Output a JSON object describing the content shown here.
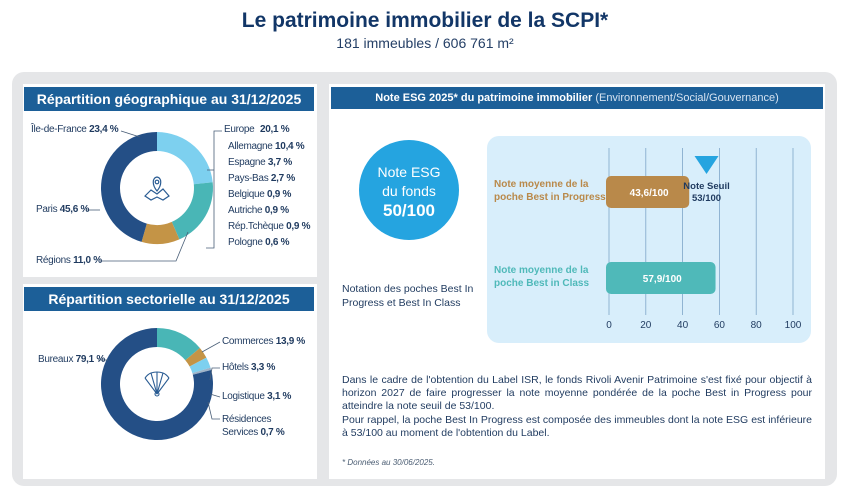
{
  "header": {
    "title": "Le patrimoine immobilier de la SCPI*",
    "subtitle": "181 immeubles / 606 761 m²"
  },
  "geo": {
    "heading": "Répartition géographique au 31/12/2025",
    "icon": "map-pin-icon"
  },
  "sector": {
    "heading": "Répartition sectorielle au 31/12/2025",
    "icon": "fan-icon"
  },
  "esg": {
    "heading_main": "Note ESG 2025* du patrimoine immobilier",
    "heading_sub": "(Environnement/Social/Gouvernance)",
    "bubble_line1": "Note ESG",
    "bubble_line2": "du fonds",
    "bubble_value": "50/100",
    "notation": "Notation des poches Best In Progress et Best In Class",
    "paragraph1": "Dans le cadre de l'obtention du Label ISR, le fonds Rivoli Avenir Patrimoine s'est fixé pour objectif à horizon 2027 de faire progresser la note moyenne pondérée de la poche Best in Progress pour atteindre la note seuil de 53/100.",
    "paragraph2": "Pour rappel, la poche Best In Progress est composée des immeubles dont la note ESG est inférieure à 53/100 au moment de l'obtention du Label.",
    "footnote": "* Données au 30/06/2025."
  },
  "colors": {
    "navy": "#1c5f98",
    "dark_segment": "#244f86",
    "light_blue": "#7dd0ef",
    "teal": "#49b6b6",
    "gold": "#c49446",
    "bubble": "#25a4e0",
    "chart_bg": "#d8eefb"
  },
  "chart_data": [
    {
      "type": "pie",
      "title": "Répartition géographique au 31/12/2025",
      "slices": [
        {
          "name": "Île-de-France",
          "label": "23,4 %",
          "value": 23.4,
          "color": "#7dd0ef"
        },
        {
          "name": "Europe",
          "label": "20,1 %",
          "value": 20.1,
          "color": "#49b6b6",
          "breakdown": [
            {
              "name": "Allemagne",
              "label": "10,4 %",
              "value": 10.4
            },
            {
              "name": "Espagne",
              "label": "3,7 %",
              "value": 3.7
            },
            {
              "name": "Pays-Bas",
              "label": "2,7 %",
              "value": 2.7
            },
            {
              "name": "Belgique",
              "label": "0,9 %",
              "value": 0.9
            },
            {
              "name": "Autriche",
              "label": "0,9 %",
              "value": 0.9
            },
            {
              "name": "Rép.Tchèque",
              "label": "0,9 %",
              "value": 0.9
            },
            {
              "name": "Pologne",
              "label": "0,6 %",
              "value": 0.6
            }
          ]
        },
        {
          "name": "Régions",
          "label": "11,0 %",
          "value": 11.0,
          "color": "#c49446"
        },
        {
          "name": "Paris",
          "label": "45,6 %",
          "value": 45.6,
          "color": "#244f86"
        }
      ]
    },
    {
      "type": "pie",
      "title": "Répartition sectorielle au 31/12/2025",
      "slices": [
        {
          "name": "Commerces",
          "label": "13,9 %",
          "value": 13.9,
          "color": "#49b6b6"
        },
        {
          "name": "Hôtels",
          "label": "3,3 %",
          "value": 3.3,
          "color": "#c49446"
        },
        {
          "name": "Logistique",
          "label": "3,1 %",
          "value": 3.1,
          "color": "#7dd0ef"
        },
        {
          "name": "Résidences Services",
          "label": "0,7 %",
          "value": 0.7,
          "color": "#9fb3c8"
        },
        {
          "name": "Bureaux",
          "label": "79,1 %",
          "value": 79.1,
          "color": "#244f86"
        }
      ]
    },
    {
      "type": "bar",
      "orientation": "horizontal",
      "categories": [
        "Note moyenne de la poche Best in Progress",
        "Note moyenne de la poche Best in Class"
      ],
      "values": [
        43.6,
        57.9
      ],
      "value_labels": [
        "43,6/100",
        "57,9/100"
      ],
      "colors": [
        "#b9894a",
        "#4fb9b9"
      ],
      "xlim": [
        0,
        100
      ],
      "xticks": [
        0,
        20,
        40,
        60,
        80,
        100
      ],
      "grid": true,
      "threshold": {
        "value": 53,
        "label_line1": "Note Seuil",
        "label_line2": "53/100"
      }
    }
  ]
}
